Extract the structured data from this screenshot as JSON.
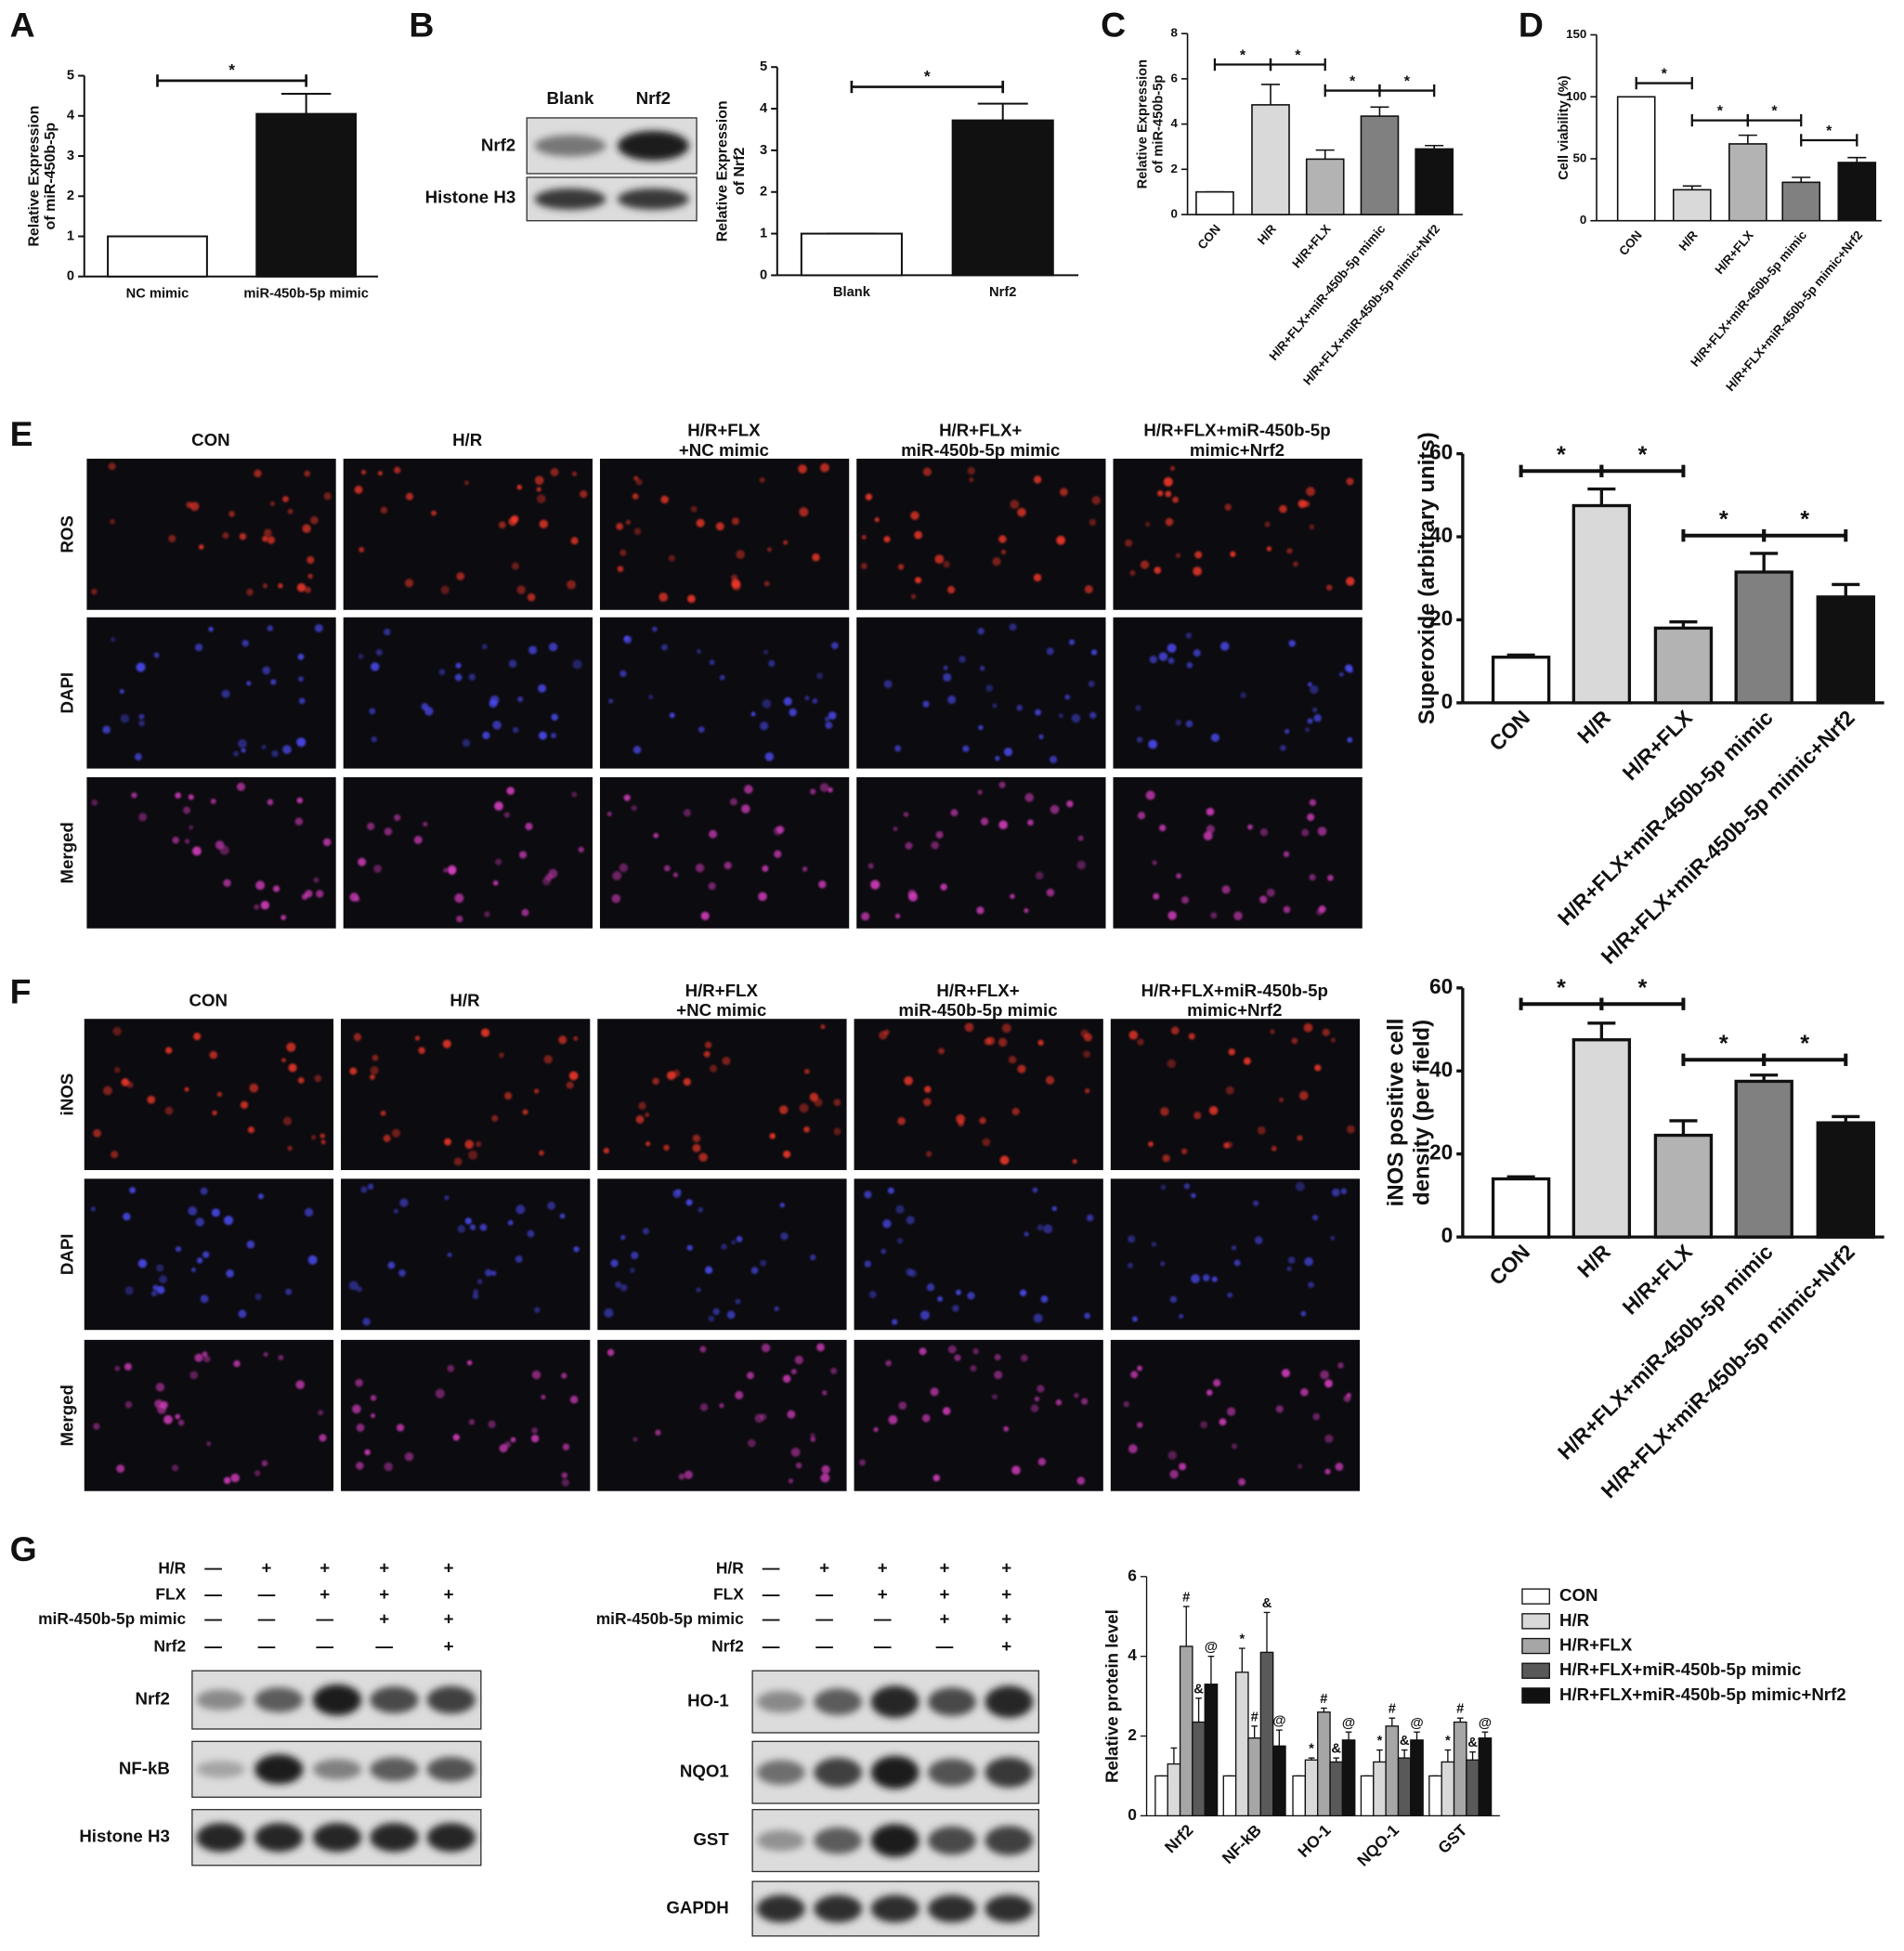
{
  "panel_labels": [
    "A",
    "B",
    "C",
    "D",
    "E",
    "F",
    "G"
  ],
  "blot_B": {
    "lanes": [
      "Blank",
      "Nrf2"
    ],
    "rows": [
      "Nrf2",
      "Histone H3"
    ]
  },
  "imaging_E": {
    "columns": [
      [
        "CON"
      ],
      [
        "H/R"
      ],
      [
        "H/R+FLX",
        "+NC mimic"
      ],
      [
        "H/R+FLX+",
        "miR-450b-5p mimic"
      ],
      [
        "H/R+FLX+miR-450b-5p",
        "mimic+Nrf2"
      ]
    ],
    "rows": [
      "ROS",
      "DAPI",
      "Merged"
    ]
  },
  "imaging_F": {
    "columns": [
      [
        "CON"
      ],
      [
        "H/R"
      ],
      [
        "H/R+FLX",
        "+NC mimic"
      ],
      [
        "H/R+FLX+",
        "miR-450b-5p mimic"
      ],
      [
        "H/R+FLX+miR-450b-5p",
        "mimic+Nrf2"
      ]
    ],
    "rows": [
      "iNOS",
      "DAPI",
      "Merged"
    ]
  },
  "blot_G": {
    "conditions": [
      {
        "name": "H/R",
        "signs": [
          "—",
          "+",
          "+",
          "+",
          "+"
        ]
      },
      {
        "name": "FLX",
        "signs": [
          "—",
          "—",
          "+",
          "+",
          "+"
        ]
      },
      {
        "name": "miR-450b-5p mimic",
        "signs": [
          "—",
          "—",
          "—",
          "+",
          "+"
        ]
      },
      {
        "name": "Nrf2",
        "signs": [
          "—",
          "—",
          "—",
          "—",
          "+"
        ]
      }
    ],
    "left_rows": [
      "Nrf2",
      "NF-kB",
      "Histone H3"
    ],
    "right_rows": [
      "HO-1",
      "NQO1",
      "GST",
      "GAPDH"
    ]
  },
  "chart_data": [
    {
      "type": "bar",
      "ylabel": [
        "Relative Expression",
        "of miR-450b-5p"
      ],
      "categories": [
        "NC mimic",
        "miR-450b-5p mimic"
      ],
      "values": [
        1,
        4.05
      ],
      "errors": [
        0,
        0.5
      ],
      "colors": [
        "#ffffff",
        "#111111"
      ],
      "ylim": [
        0,
        5
      ],
      "yticks": [
        0,
        1,
        2,
        3,
        4,
        5
      ],
      "annotations": [
        "*"
      ]
    },
    {
      "type": "bar",
      "ylabel": [
        "Relative Expression",
        "of Nrf2"
      ],
      "categories": [
        "Blank",
        "Nrf2"
      ],
      "values": [
        1,
        3.72
      ],
      "errors": [
        0,
        0.4
      ],
      "colors": [
        "#ffffff",
        "#111111"
      ],
      "ylim": [
        0,
        5
      ],
      "yticks": [
        0,
        1,
        2,
        3,
        4,
        5
      ],
      "annotations": [
        "*"
      ]
    },
    {
      "type": "bar",
      "ylabel": [
        "Relative Expression",
        "of miR-450b-5p"
      ],
      "categories": [
        "CON",
        "H/R",
        "H/R+FLX",
        "H/R+FLX+miR-450b-5p mimic",
        "H/R+FLX+miR-450b-5p mimic+Nrf2"
      ],
      "values": [
        1,
        4.85,
        2.45,
        4.35,
        2.9
      ],
      "errors": [
        0,
        0.9,
        0.4,
        0.4,
        0.15
      ],
      "colors": [
        "#ffffff",
        "#d9d9d9",
        "#b3b3b3",
        "#808080",
        "#111111"
      ],
      "ylim": [
        0,
        8
      ],
      "yticks": [
        0,
        2,
        4,
        6,
        8
      ],
      "annotations": [
        "*",
        "*",
        "*",
        "*"
      ]
    },
    {
      "type": "bar",
      "ylabel": [
        "Cell viability (%)"
      ],
      "categories": [
        "CON",
        "H/R",
        "H/R+FLX",
        "H/R+FLX+miR-450b-5p mimic",
        "H/R+FLX+miR-450b-5p mimic+Nrf2"
      ],
      "values": [
        100,
        25,
        62,
        31,
        47
      ],
      "errors": [
        0,
        3,
        7,
        4,
        4
      ],
      "colors": [
        "#ffffff",
        "#d9d9d9",
        "#b3b3b3",
        "#808080",
        "#111111"
      ],
      "ylim": [
        0,
        150
      ],
      "yticks": [
        0,
        50,
        100,
        150
      ],
      "annotations": [
        "*",
        "*",
        "*",
        "*"
      ]
    },
    {
      "type": "bar",
      "ylabel": [
        "Superoxide (arbitrary units)"
      ],
      "categories": [
        "CON",
        "H/R",
        "H/R+FLX",
        "H/R+FLX+miR-450b-5p mimic",
        "H/R+FLX+miR-450b-5p mimic+Nrf2"
      ],
      "values": [
        11,
        47.5,
        18,
        31.5,
        25.5
      ],
      "errors": [
        0.5,
        4,
        1.5,
        4.5,
        3
      ],
      "colors": [
        "#ffffff",
        "#d9d9d9",
        "#b3b3b3",
        "#808080",
        "#111111"
      ],
      "ylim": [
        0,
        60
      ],
      "yticks": [
        0,
        20,
        40,
        60
      ],
      "annotations": [
        "*",
        "*",
        "*",
        "*"
      ]
    },
    {
      "type": "bar",
      "ylabel": [
        "iNOS positive cell",
        "density (per field)"
      ],
      "categories": [
        "CON",
        "H/R",
        "H/R+FLX",
        "H/R+FLX+miR-450b-5p mimic",
        "H/R+FLX+miR-450b-5p mimic+Nrf2"
      ],
      "values": [
        14,
        47.5,
        24.5,
        37.5,
        27.5
      ],
      "errors": [
        0.5,
        4,
        3.5,
        1.5,
        1.5
      ],
      "colors": [
        "#ffffff",
        "#d9d9d9",
        "#b3b3b3",
        "#808080",
        "#111111"
      ],
      "ylim": [
        0,
        60
      ],
      "yticks": [
        0,
        20,
        40,
        60
      ],
      "annotations": [
        "*",
        "*",
        "*",
        "*"
      ]
    },
    {
      "type": "grouped_bar",
      "ylabel": [
        "Relative protein level"
      ],
      "categories": [
        "Nrf2",
        "NF-kB",
        "HO-1",
        "NQO-1",
        "GST"
      ],
      "ylim": [
        0,
        6
      ],
      "yticks": [
        0,
        2,
        4,
        6
      ],
      "series": [
        {
          "name": "CON",
          "color": "#ffffff",
          "values": [
            1,
            1,
            1,
            1,
            1
          ],
          "errors": [
            0,
            0,
            0,
            0,
            0
          ],
          "markers": [
            null,
            null,
            null,
            null,
            null
          ]
        },
        {
          "name": "H/R",
          "color": "#d9d9d9",
          "values": [
            1.3,
            3.6,
            1.4,
            1.35,
            1.35
          ],
          "errors": [
            0.4,
            0.6,
            0.05,
            0.3,
            0.3
          ],
          "markers": [
            null,
            "*",
            "*",
            "*",
            "*"
          ]
        },
        {
          "name": "H/R+FLX",
          "color": "#a6a6a6",
          "values": [
            4.25,
            1.95,
            2.6,
            2.25,
            2.35
          ],
          "errors": [
            1,
            0.3,
            0.1,
            0.2,
            0.1
          ],
          "markers": [
            "#",
            "#",
            "#",
            "#",
            "#"
          ]
        },
        {
          "name": "H/R+FLX+miR-450b-5p mimic",
          "color": "#595959",
          "values": [
            2.35,
            4.1,
            1.35,
            1.45,
            1.4
          ],
          "errors": [
            0.6,
            1,
            0.1,
            0.2,
            0.2
          ],
          "markers": [
            "&",
            "&",
            "&",
            "&",
            "&"
          ]
        },
        {
          "name": "H/R+FLX+miR-450b-5p mimic+Nrf2",
          "color": "#111111",
          "values": [
            3.3,
            1.75,
            1.9,
            1.9,
            1.95
          ],
          "errors": [
            0.7,
            0.4,
            0.2,
            0.2,
            0.15
          ],
          "markers": [
            "@",
            "@",
            "@",
            "@",
            "@"
          ]
        }
      ]
    }
  ]
}
